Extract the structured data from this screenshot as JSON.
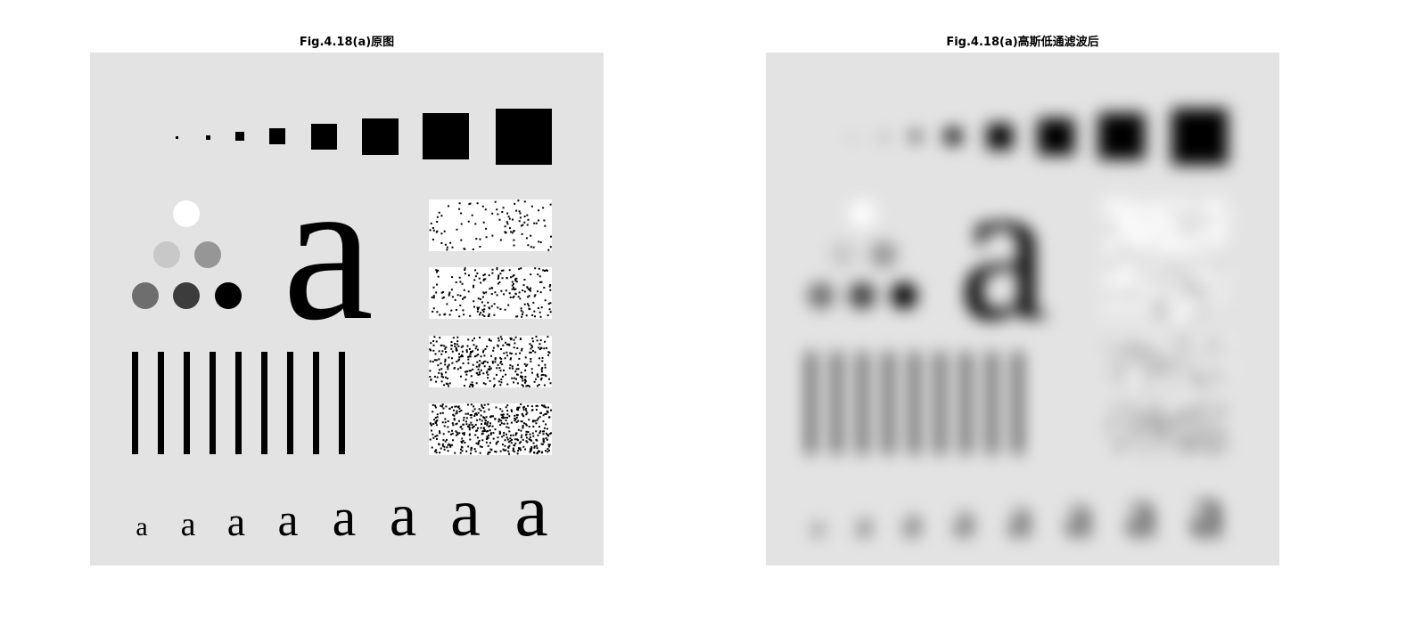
{
  "figures": [
    {
      "title": "Fig.4.18(a)原图"
    },
    {
      "title": "Fig.4.18(a)高斯低通滤波后"
    }
  ],
  "test_pattern": {
    "background_color": "#e3e3e3",
    "ink_color": "#000000",
    "large_glyph": "a",
    "small_glyph": "a",
    "small_glyph_count": 8,
    "square_count": 8,
    "bar_count": 9,
    "circle_shades": [
      "#ffffff",
      "#c8c8c8",
      "#969696",
      "#6e6e6e",
      "#3c3c3c",
      "#000000"
    ],
    "noise_density": [
      0.08,
      0.16,
      0.26,
      0.36
    ]
  }
}
